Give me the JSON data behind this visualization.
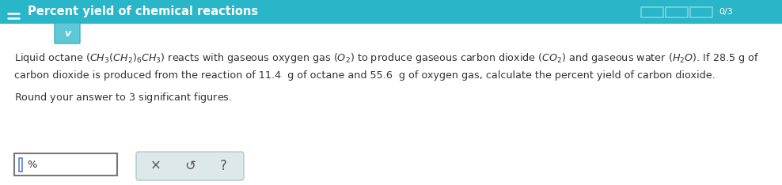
{
  "bg_color": "#29b6c8",
  "white_bg": "#ffffff",
  "header_text": "Percent yield of chemical reactions",
  "header_color": "#ffffff",
  "header_fontsize": 10.5,
  "progress_text": "0/3",
  "progress_color": "#ffffff",
  "body_bg": "#f5f5f5",
  "body_fontsize": 9.2,
  "chevron_color": "#5ec8d8",
  "chevron_border": "#3ab0c4",
  "input_box_color": "#ffffff",
  "input_cursor_color": "#5b7fcc",
  "button_bg": "#dde8ea",
  "button_border": "#b0c8cc",
  "hamburger_color": "#ffffff",
  "text_color": "#333333",
  "progress_box_color": "#a8dde8",
  "line1": "Liquid octane \\(CH_3(CH_2)_6CH_3\\) reacts with gaseous oxygen gas \\(O_2\\) to produce gaseous carbon dioxide \\(CO_2\\) and gaseous water \\(H_2O\\). If 28.5 g of",
  "line2": "carbon dioxide is produced from the reaction of 11.4  g of octane and 55.6  g of oxygen gas, calculate the percent yield of carbon dioxide.",
  "line3": "Round your answer to 3 significant figures."
}
